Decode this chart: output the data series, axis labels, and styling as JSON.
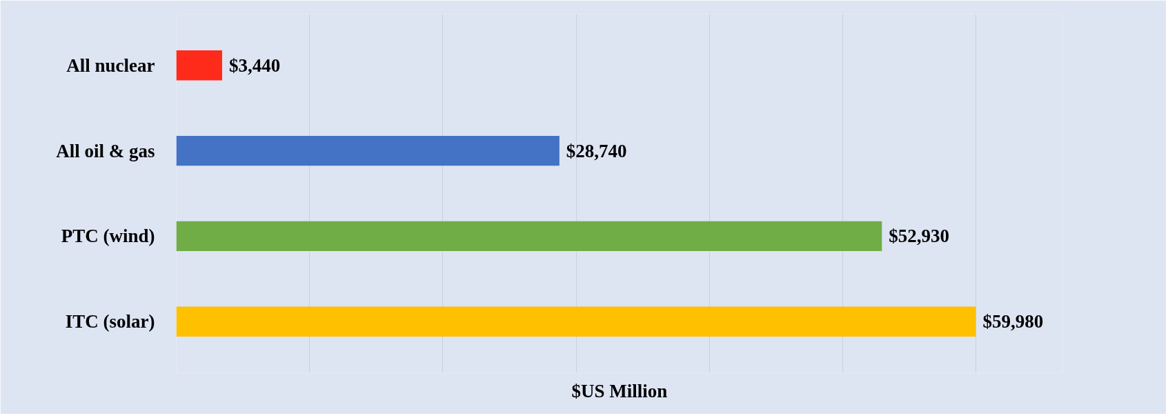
{
  "chart_data": {
    "type": "bar",
    "orientation": "horizontal",
    "xlabel": "$US Million",
    "categories": [
      "All nuclear",
      "All oil & gas",
      "PTC (wind)",
      "ITC (solar)"
    ],
    "values": [
      3440,
      28740,
      52930,
      59980
    ],
    "colors": [
      "#fe2a1a",
      "#4472c4",
      "#70ad47",
      "#ffc000"
    ],
    "value_labels": [
      "$3,440",
      "$28,740",
      "$52,930",
      "$59,980"
    ],
    "xlim": [
      0,
      66500
    ],
    "xticks": [
      {
        "value": 0,
        "label": null
      },
      {
        "value": 10000,
        "label": null
      },
      {
        "value": 20000,
        "label": null
      },
      {
        "value": 30000,
        "label": null
      },
      {
        "value": 40000,
        "label": null
      },
      {
        "value": 50000,
        "label": null
      },
      {
        "value": 60000,
        "label": null
      }
    ],
    "grid": "x",
    "tick_labels": "y"
  }
}
